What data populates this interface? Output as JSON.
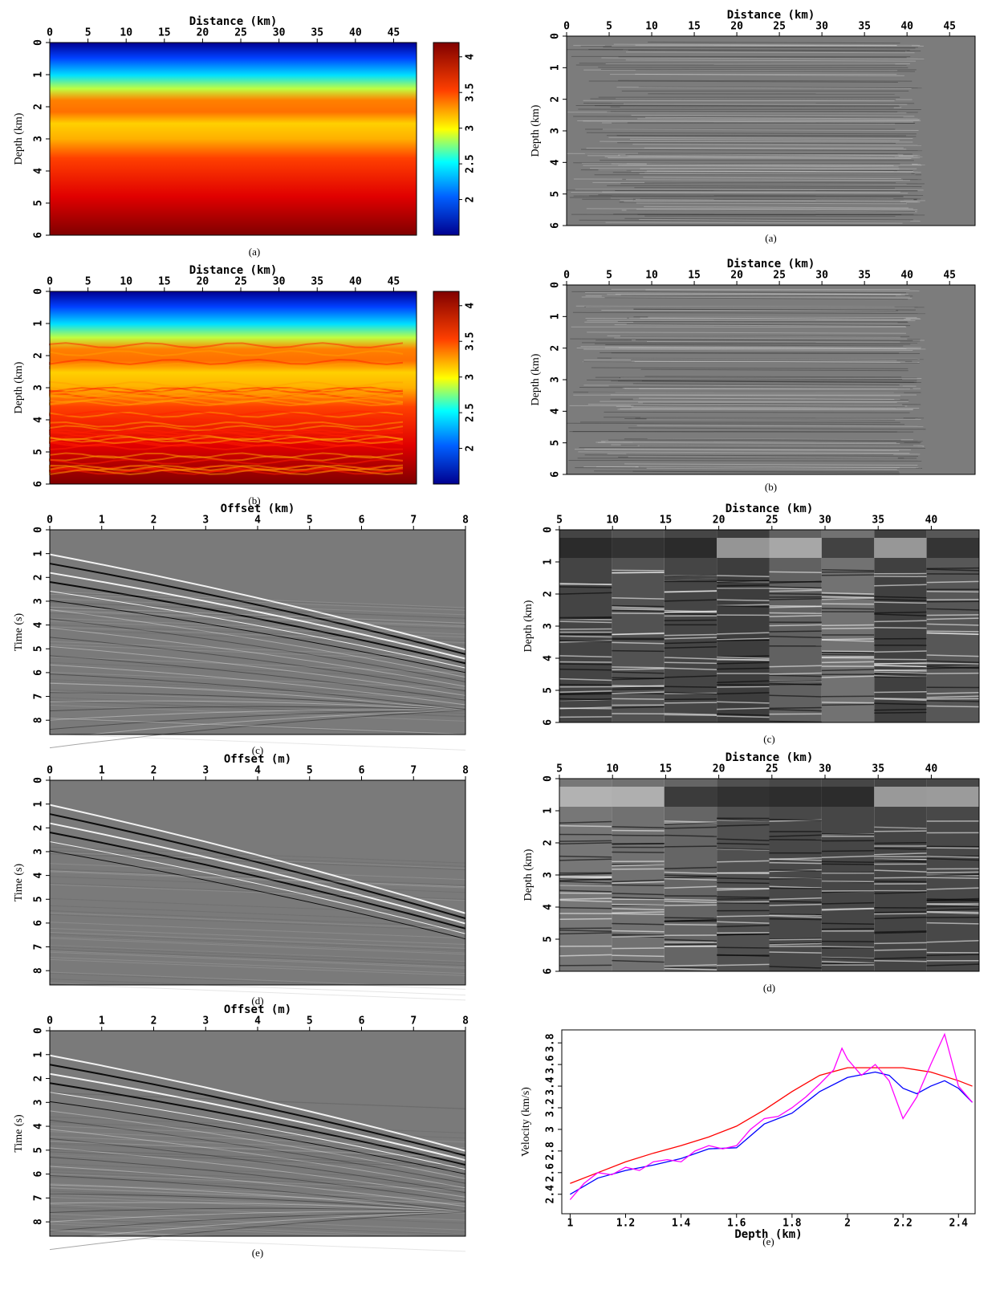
{
  "chart_data": [
    {
      "type": "velocity-model",
      "xlabel": "Distance (km)",
      "ylabel": "Depth (km)",
      "caption": "(a)",
      "xaxis": "top",
      "xlim": [
        0,
        48
      ],
      "xticks": [
        0,
        5,
        10,
        15,
        20,
        25,
        30,
        35,
        40,
        45
      ],
      "ylim": [
        6,
        0
      ],
      "yticks": [
        0,
        1,
        2,
        3,
        4,
        5,
        6
      ],
      "colorbar": {
        "lim": [
          1.5,
          4.2
        ],
        "ticks": [
          2,
          2.5,
          3,
          3.5,
          4
        ]
      },
      "detail": false
    },
    {
      "type": "velocity-model",
      "xlabel": "Distance (km)",
      "ylabel": "Depth (km)",
      "caption": "(b)",
      "xaxis": "top",
      "xlim": [
        0,
        48
      ],
      "xticks": [
        0,
        5,
        10,
        15,
        20,
        25,
        30,
        35,
        40,
        45
      ],
      "ylim": [
        6,
        0
      ],
      "yticks": [
        0,
        1,
        2,
        3,
        4,
        5,
        6
      ],
      "colorbar": {
        "lim": [
          1.5,
          4.2
        ],
        "ticks": [
          2,
          2.5,
          3,
          3.5,
          4
        ]
      },
      "detail": true
    },
    {
      "type": "shot-gather",
      "xlabel": "Offset (km)",
      "ylabel": "Time (s)",
      "caption": "(c)",
      "xaxis": "top",
      "xlim": [
        0,
        8
      ],
      "xticks": [
        0,
        1,
        2,
        3,
        4,
        5,
        6,
        7,
        8
      ],
      "ylim": [
        8.6,
        0
      ],
      "yticks": [
        0,
        1,
        2,
        3,
        4,
        5,
        6,
        7,
        8
      ]
    },
    {
      "type": "shot-gather",
      "xlabel": "Offset (m)",
      "ylabel": "Time (s)",
      "caption": "(d)",
      "xaxis": "top",
      "xlim": [
        0,
        8
      ],
      "xticks": [
        0,
        1,
        2,
        3,
        4,
        5,
        6,
        7,
        8
      ],
      "ylim": [
        8.6,
        0
      ],
      "yticks": [
        0,
        1,
        2,
        3,
        4,
        5,
        6,
        7,
        8
      ]
    },
    {
      "type": "shot-gather",
      "xlabel": "Offset (m)",
      "ylabel": "Time (s)",
      "caption": "(e)",
      "xaxis": "top",
      "xlim": [
        0,
        8
      ],
      "xticks": [
        0,
        1,
        2,
        3,
        4,
        5,
        6,
        7,
        8
      ],
      "ylim": [
        8.6,
        0
      ],
      "yticks": [
        0,
        1,
        2,
        3,
        4,
        5,
        6,
        7,
        8
      ]
    },
    {
      "type": "seismic-section",
      "xlabel": "Distance (km)",
      "ylabel": "Depth (km)",
      "caption": "(a)",
      "xaxis": "top",
      "xlim": [
        0,
        48
      ],
      "xticks": [
        0,
        5,
        10,
        15,
        20,
        25,
        30,
        35,
        40,
        45
      ],
      "ylim": [
        6,
        0
      ],
      "yticks": [
        0,
        1,
        2,
        3,
        4,
        5,
        6
      ]
    },
    {
      "type": "seismic-section",
      "xlabel": "Distance (km)",
      "ylabel": "Depth (km)",
      "caption": "(b)",
      "xaxis": "top",
      "xlim": [
        0,
        48
      ],
      "xticks": [
        0,
        5,
        10,
        15,
        20,
        25,
        30,
        35,
        40,
        45
      ],
      "ylim": [
        6,
        0
      ],
      "yticks": [
        0,
        1,
        2,
        3,
        4,
        5,
        6
      ]
    },
    {
      "type": "gather-panels",
      "xlabel": "Distance (km)",
      "ylabel": "Depth (km)",
      "caption": "(c)",
      "xaxis": "top",
      "xlim": [
        5,
        44.5
      ],
      "xticks": [
        5,
        10,
        15,
        20,
        25,
        30,
        35,
        40
      ],
      "ylim": [
        6,
        0
      ],
      "yticks": [
        0,
        1,
        2,
        3,
        4,
        5,
        6
      ]
    },
    {
      "type": "gather-panels",
      "xlabel": "Distance (km)",
      "ylabel": "Depth (km)",
      "caption": "(d)",
      "xaxis": "top",
      "xlim": [
        5,
        44.5
      ],
      "xticks": [
        5,
        10,
        15,
        20,
        25,
        30,
        35,
        40
      ],
      "ylim": [
        6,
        0
      ],
      "yticks": [
        0,
        1,
        2,
        3,
        4,
        5,
        6
      ]
    },
    {
      "type": "line",
      "xlabel": "Depth (km)",
      "ylabel": "Velocity (km/s)",
      "caption": "(e)",
      "xaxis": "bottom",
      "xlim": [
        0.97,
        2.46
      ],
      "xticks": [
        1,
        1.2,
        1.4,
        1.6,
        1.8,
        2,
        2.2,
        2.4
      ],
      "ylim": [
        2.22,
        3.92
      ],
      "yticks": [
        2.4,
        2.6,
        2.8,
        3,
        3.2,
        3.4,
        3.6,
        3.8
      ],
      "series": [
        {
          "color": "#ff0000",
          "x": [
            1.0,
            1.1,
            1.2,
            1.3,
            1.4,
            1.5,
            1.6,
            1.7,
            1.8,
            1.9,
            2.0,
            2.1,
            2.2,
            2.3,
            2.4,
            2.45
          ],
          "values": [
            2.5,
            2.6,
            2.7,
            2.78,
            2.85,
            2.93,
            3.03,
            3.18,
            3.35,
            3.5,
            3.57,
            3.57,
            3.57,
            3.53,
            3.45,
            3.4
          ]
        },
        {
          "color": "#0000ff",
          "x": [
            1.0,
            1.1,
            1.2,
            1.3,
            1.4,
            1.5,
            1.6,
            1.7,
            1.8,
            1.9,
            2.0,
            2.1,
            2.15,
            2.2,
            2.25,
            2.3,
            2.35,
            2.4,
            2.45
          ],
          "values": [
            2.4,
            2.55,
            2.62,
            2.67,
            2.73,
            2.82,
            2.83,
            3.05,
            3.15,
            3.35,
            3.48,
            3.53,
            3.5,
            3.38,
            3.33,
            3.4,
            3.45,
            3.38,
            3.25
          ]
        },
        {
          "color": "#ff00ff",
          "x": [
            1.0,
            1.05,
            1.1,
            1.15,
            1.2,
            1.25,
            1.3,
            1.35,
            1.4,
            1.45,
            1.5,
            1.55,
            1.6,
            1.65,
            1.7,
            1.75,
            1.8,
            1.85,
            1.9,
            1.95,
            1.98,
            2.0,
            2.05,
            2.1,
            2.15,
            2.2,
            2.25,
            2.3,
            2.35,
            2.4,
            2.45
          ],
          "values": [
            2.35,
            2.5,
            2.6,
            2.58,
            2.65,
            2.62,
            2.7,
            2.72,
            2.7,
            2.8,
            2.85,
            2.82,
            2.85,
            3.0,
            3.1,
            3.12,
            3.2,
            3.3,
            3.42,
            3.55,
            3.75,
            3.65,
            3.5,
            3.6,
            3.45,
            3.1,
            3.3,
            3.6,
            3.88,
            3.4,
            3.25
          ]
        }
      ]
    }
  ]
}
